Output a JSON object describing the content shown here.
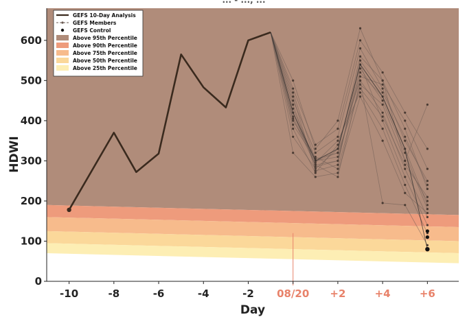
{
  "chart_data": {
    "type": "line",
    "title": "... - ..., ...",
    "xlabel": "Day",
    "ylabel": "HDWI",
    "xlim": [
      -11,
      7.4
    ],
    "ylim": [
      0,
      680
    ],
    "grid": false,
    "legend_position": "top-left",
    "x_ticks": [
      {
        "x": -10,
        "label": "-10",
        "highlight": false
      },
      {
        "x": -8,
        "label": "-8",
        "highlight": false
      },
      {
        "x": -6,
        "label": "-6",
        "highlight": false
      },
      {
        "x": -4,
        "label": "-4",
        "highlight": false
      },
      {
        "x": -2,
        "label": "-2",
        "highlight": false
      },
      {
        "x": 0,
        "label": "08/20",
        "highlight": true
      },
      {
        "x": 2,
        "label": "+2",
        "highlight": true
      },
      {
        "x": 4,
        "label": "+4",
        "highlight": true
      },
      {
        "x": 6,
        "label": "+6",
        "highlight": true
      }
    ],
    "y_ticks": [
      0,
      100,
      200,
      300,
      400,
      500,
      600
    ],
    "percentile_bands": [
      {
        "name": "Above 95th Percentile",
        "color": "#b08c7a",
        "start": 230,
        "end": 205
      },
      {
        "name": "Above 90th Percentile",
        "color": "#ee9b7c",
        "start": 190,
        "end": 165
      },
      {
        "name": "Above 75th Percentile",
        "color": "#f7bb8c",
        "start": 160,
        "end": 135
      },
      {
        "name": "Above 50th Percentile",
        "color": "#fbd89a",
        "start": 125,
        "end": 100
      },
      {
        "name": "Above 25th Percentile",
        "color": "#fdeeb4",
        "start": 95,
        "end": 70
      }
    ],
    "analysis": {
      "name": "GEFS 10-Day Analysis",
      "color": "#3a2a1e",
      "x": [
        -10,
        -8,
        -7,
        -6,
        -5,
        -4,
        -3,
        -2,
        -1
      ],
      "y": [
        178,
        370,
        272,
        318,
        565,
        483,
        433,
        600,
        620
      ]
    },
    "members": {
      "name": "GEFS Members",
      "color": "#6a5a52",
      "x": [
        -1,
        0,
        1,
        2,
        3,
        4,
        5,
        6
      ],
      "series": [
        [
          620,
          470,
          300,
          320,
          560,
          500,
          380,
          230
        ],
        [
          620,
          420,
          290,
          300,
          520,
          460,
          330,
          190
        ],
        [
          620,
          380,
          270,
          340,
          500,
          420,
          280,
          160
        ],
        [
          620,
          450,
          320,
          360,
          580,
          480,
          350,
          250
        ],
        [
          620,
          400,
          310,
          280,
          490,
          440,
          300,
          200
        ],
        [
          620,
          360,
          280,
          330,
          540,
          400,
          260,
          140
        ],
        [
          620,
          430,
          300,
          310,
          510,
          490,
          400,
          280
        ],
        [
          620,
          480,
          340,
          380,
          600,
          520,
          420,
          330
        ],
        [
          620,
          410,
          295,
          350,
          470,
          380,
          240,
          120
        ],
        [
          620,
          440,
          285,
          300,
          530,
          450,
          320,
          180
        ],
        [
          620,
          390,
          305,
          320,
          480,
          410,
          290,
          210
        ],
        [
          620,
          460,
          275,
          290,
          550,
          470,
          360,
          240
        ],
        [
          620,
          320,
          260,
          270,
          460,
          350,
          220,
          170
        ],
        [
          620,
          500,
          330,
          400,
          630,
          500,
          300,
          440
        ],
        [
          620,
          405,
          290,
          260,
          500,
          195,
          190,
          90
        ]
      ]
    },
    "control": {
      "name": "GEFS Control",
      "color": "#111111",
      "x": [
        -1,
        0,
        1,
        2,
        3,
        4,
        5,
        6
      ],
      "y": [
        620,
        420,
        300,
        330,
        540,
        460,
        330,
        80
      ]
    },
    "control_extra_points": [
      {
        "x": 6,
        "y": 110
      },
      {
        "x": 6,
        "y": 125
      }
    ]
  }
}
